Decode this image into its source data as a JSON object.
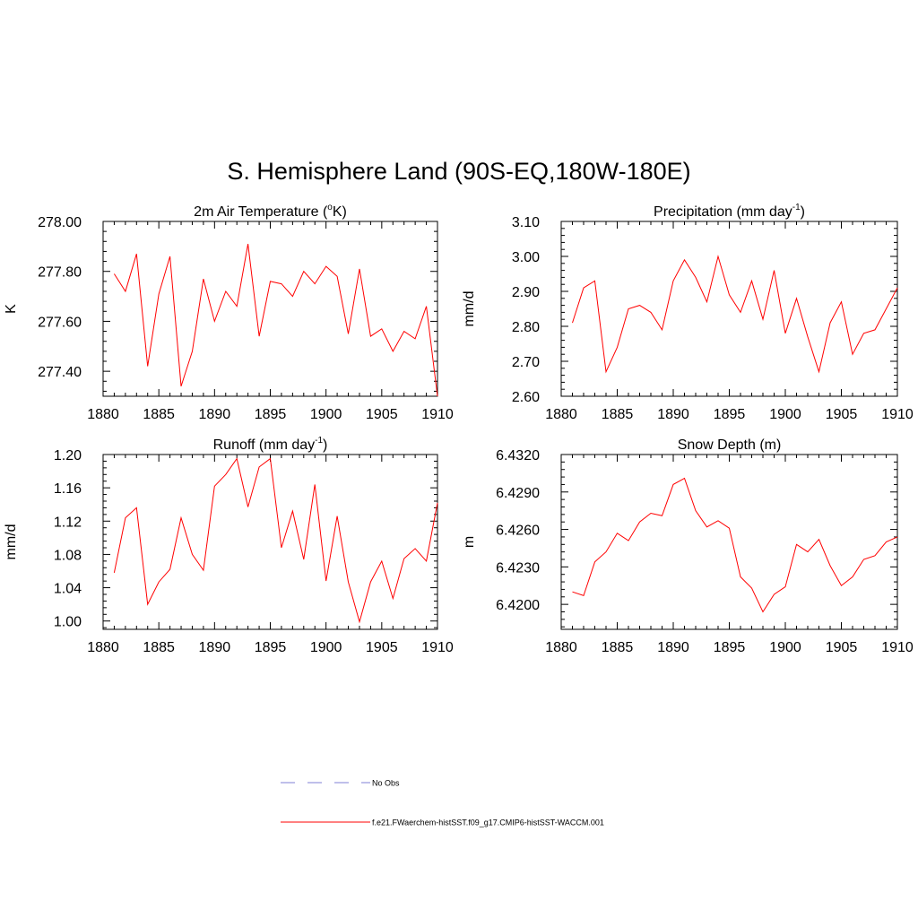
{
  "title": "S. Hemisphere Land (90S-EQ,180W-180E)",
  "colors": {
    "model": "#ff0000",
    "obs": "#9999dd",
    "axis": "#000000"
  },
  "legend": {
    "obs_label": "No Obs",
    "model_label": "f.e21.FWaerchem-histSST.f09_g17.CMIP6-histSST-WACCM.001"
  },
  "chart_data": [
    {
      "type": "line",
      "title": "2m Air Temperature (",
      "title_sup": "o",
      "title_tail": "K)",
      "ylabel": "K",
      "xlim": [
        1880,
        1910
      ],
      "ylim": [
        277.3,
        278.0
      ],
      "xticks": [
        "1880",
        "1885",
        "1890",
        "1895",
        "1900",
        "1905",
        "1910"
      ],
      "yticks": [
        "277.40",
        "277.60",
        "277.80",
        "278.00"
      ],
      "x": [
        1881,
        1882,
        1883,
        1884,
        1885,
        1886,
        1887,
        1888,
        1889,
        1890,
        1891,
        1892,
        1893,
        1894,
        1895,
        1896,
        1897,
        1898,
        1899,
        1900,
        1901,
        1902,
        1903,
        1904,
        1905,
        1906,
        1907,
        1908,
        1909,
        1910
      ],
      "values": [
        277.79,
        277.72,
        277.87,
        277.42,
        277.71,
        277.86,
        277.34,
        277.48,
        277.77,
        277.6,
        277.72,
        277.66,
        277.91,
        277.54,
        277.76,
        277.75,
        277.7,
        277.8,
        277.75,
        277.82,
        277.78,
        277.55,
        277.81,
        277.54,
        277.57,
        277.48,
        277.56,
        277.53,
        277.66,
        277.3
      ]
    },
    {
      "type": "line",
      "title": "Precipitation (mm day",
      "title_sup": "-1",
      "title_tail": ")",
      "ylabel": "mm/d",
      "xlim": [
        1880,
        1910
      ],
      "ylim": [
        2.6,
        3.1
      ],
      "xticks": [
        "1880",
        "1885",
        "1890",
        "1895",
        "1900",
        "1905",
        "1910"
      ],
      "yticks": [
        "2.60",
        "2.70",
        "2.80",
        "2.90",
        "3.00",
        "3.10"
      ],
      "x": [
        1881,
        1882,
        1883,
        1884,
        1885,
        1886,
        1887,
        1888,
        1889,
        1890,
        1891,
        1892,
        1893,
        1894,
        1895,
        1896,
        1897,
        1898,
        1899,
        1900,
        1901,
        1902,
        1903,
        1904,
        1905,
        1906,
        1907,
        1908,
        1909,
        1910
      ],
      "values": [
        2.81,
        2.91,
        2.93,
        2.67,
        2.74,
        2.85,
        2.86,
        2.84,
        2.79,
        2.93,
        2.99,
        2.94,
        2.87,
        3.0,
        2.89,
        2.84,
        2.93,
        2.82,
        2.96,
        2.78,
        2.88,
        2.77,
        2.67,
        2.81,
        2.87,
        2.72,
        2.78,
        2.79,
        2.85,
        2.91
      ]
    },
    {
      "type": "line",
      "title": "Runoff (mm day",
      "title_sup": "-1",
      "title_tail": ")",
      "ylabel": "mm/d",
      "xlim": [
        1880,
        1910
      ],
      "ylim": [
        0.99,
        1.2
      ],
      "xticks": [
        "1880",
        "1885",
        "1890",
        "1895",
        "1900",
        "1905",
        "1910"
      ],
      "yticks": [
        "1.00",
        "1.04",
        "1.08",
        "1.12",
        "1.16",
        "1.20"
      ],
      "x": [
        1881,
        1882,
        1883,
        1884,
        1885,
        1886,
        1887,
        1888,
        1889,
        1890,
        1891,
        1892,
        1893,
        1894,
        1895,
        1896,
        1897,
        1898,
        1899,
        1900,
        1901,
        1902,
        1903,
        1904,
        1905,
        1906,
        1907,
        1908,
        1909,
        1910
      ],
      "values": [
        1.058,
        1.124,
        1.136,
        1.02,
        1.047,
        1.062,
        1.124,
        1.08,
        1.061,
        1.162,
        1.176,
        1.195,
        1.137,
        1.185,
        1.195,
        1.088,
        1.132,
        1.074,
        1.164,
        1.048,
        1.126,
        1.047,
        0.999,
        1.047,
        1.072,
        1.027,
        1.075,
        1.087,
        1.072,
        1.142
      ]
    },
    {
      "type": "line",
      "title": "Snow Depth (m)",
      "title_sup": "",
      "title_tail": "",
      "ylabel": "m",
      "xlim": [
        1880,
        1910
      ],
      "ylim": [
        6.418,
        6.432
      ],
      "xticks": [
        "1880",
        "1885",
        "1890",
        "1895",
        "1900",
        "1905",
        "1910"
      ],
      "yticks": [
        "6.4200",
        "6.4230",
        "6.4260",
        "6.4290",
        "6.4320"
      ],
      "x": [
        1881,
        1882,
        1883,
        1884,
        1885,
        1886,
        1887,
        1888,
        1889,
        1890,
        1891,
        1892,
        1893,
        1894,
        1895,
        1896,
        1897,
        1898,
        1899,
        1900,
        1901,
        1902,
        1903,
        1904,
        1905,
        1906,
        1907,
        1908,
        1909,
        1910
      ],
      "values": [
        6.421,
        6.4207,
        6.4234,
        6.4242,
        6.4257,
        6.4251,
        6.4266,
        6.4273,
        6.4271,
        6.4296,
        6.4301,
        6.4275,
        6.4262,
        6.4267,
        6.4261,
        6.4222,
        6.4213,
        6.4194,
        6.4208,
        6.4214,
        6.4248,
        6.4242,
        6.4252,
        6.4231,
        6.4215,
        6.4222,
        6.4236,
        6.4239,
        6.425,
        6.4254
      ]
    }
  ]
}
